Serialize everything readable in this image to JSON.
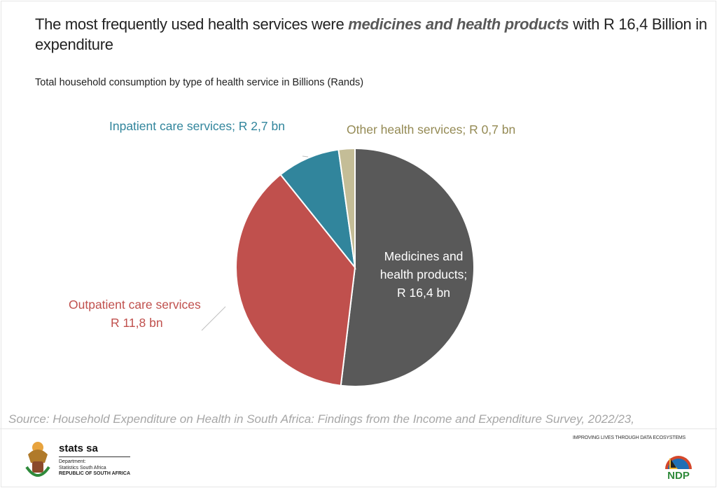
{
  "header": {
    "title_pre": "The most frequently used health services were ",
    "title_emph": "medicines and health products",
    "title_post": " with R 16,4 Billion in expenditure"
  },
  "chart_data": {
    "type": "pie",
    "title": "Total household consumption by type of health service in Billions (Rands)",
    "start_angle": "12 o'clock, clockwise",
    "slices": [
      {
        "name": "Medicines and health products",
        "value": 16.4,
        "label": "Medicines and health products; R 16,4  bn",
        "color": "#595959",
        "label_color": "#ffffff"
      },
      {
        "name": "Outpatient care services",
        "value": 11.8,
        "label": "Outpatient care services R 11,8  bn",
        "color": "#c0504d",
        "label_color": "#c0504d"
      },
      {
        "name": "Inpatient care services",
        "value": 2.7,
        "label": "Inpatient care services; R 2,7  bn",
        "color": "#31859c",
        "label_color": "#31859c"
      },
      {
        "name": "Other health services",
        "value": 0.7,
        "label": "Other health services; R 0,7  bn",
        "color": "#c4bd97",
        "label_color": "#948a54"
      }
    ]
  },
  "labels": {
    "medicines": [
      "Medicines and",
      "health products;",
      "R 16,4  bn"
    ],
    "outpatient": [
      "Outpatient care services",
      "R 11,8  bn"
    ],
    "inpatient": "Inpatient care services; R 2,7  bn",
    "other": "Other health services; R 0,7  bn"
  },
  "footer": {
    "source": "Source: Household Expenditure on Health in South Africa: Findings from the Income and Expenditure Survey, 2022/23,",
    "org": "stats sa",
    "dept1": "Department:",
    "dept2": "Statistics South Africa",
    "dept3": "REPUBLIC OF SOUTH AFRICA",
    "tagline": "IMPROVING LIVES THROUGH DATA ECOSYSTEMS",
    "ndp_logo": "NDP 2030"
  }
}
